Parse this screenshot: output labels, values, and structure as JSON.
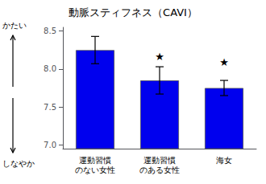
{
  "chart_data": {
    "type": "bar",
    "title": "動脈スティフネス（CAVI）",
    "categories": [
      "運動習慣\nのない女性",
      "運動習慣\nのある女性",
      "海女"
    ],
    "values": [
      8.25,
      7.85,
      7.75
    ],
    "errors": [
      0.18,
      0.18,
      0.1
    ],
    "color": "#0000ee",
    "ylim": [
      6.95,
      8.55
    ],
    "yticks": [
      {
        "value": 7.0,
        "label": "7.0"
      },
      7.5,
      {
        "value": 8.0,
        "label": "8.0"
      },
      8.5
    ],
    "grid": false,
    "annotations": [
      {
        "text": "★",
        "x": "運動習慣\nのある女性",
        "y": 8.09
      },
      {
        "text": "★",
        "x": "海女",
        "y": 8.02
      }
    ],
    "scale_labels": {
      "high": "かたい",
      "low": "しなやか"
    }
  }
}
